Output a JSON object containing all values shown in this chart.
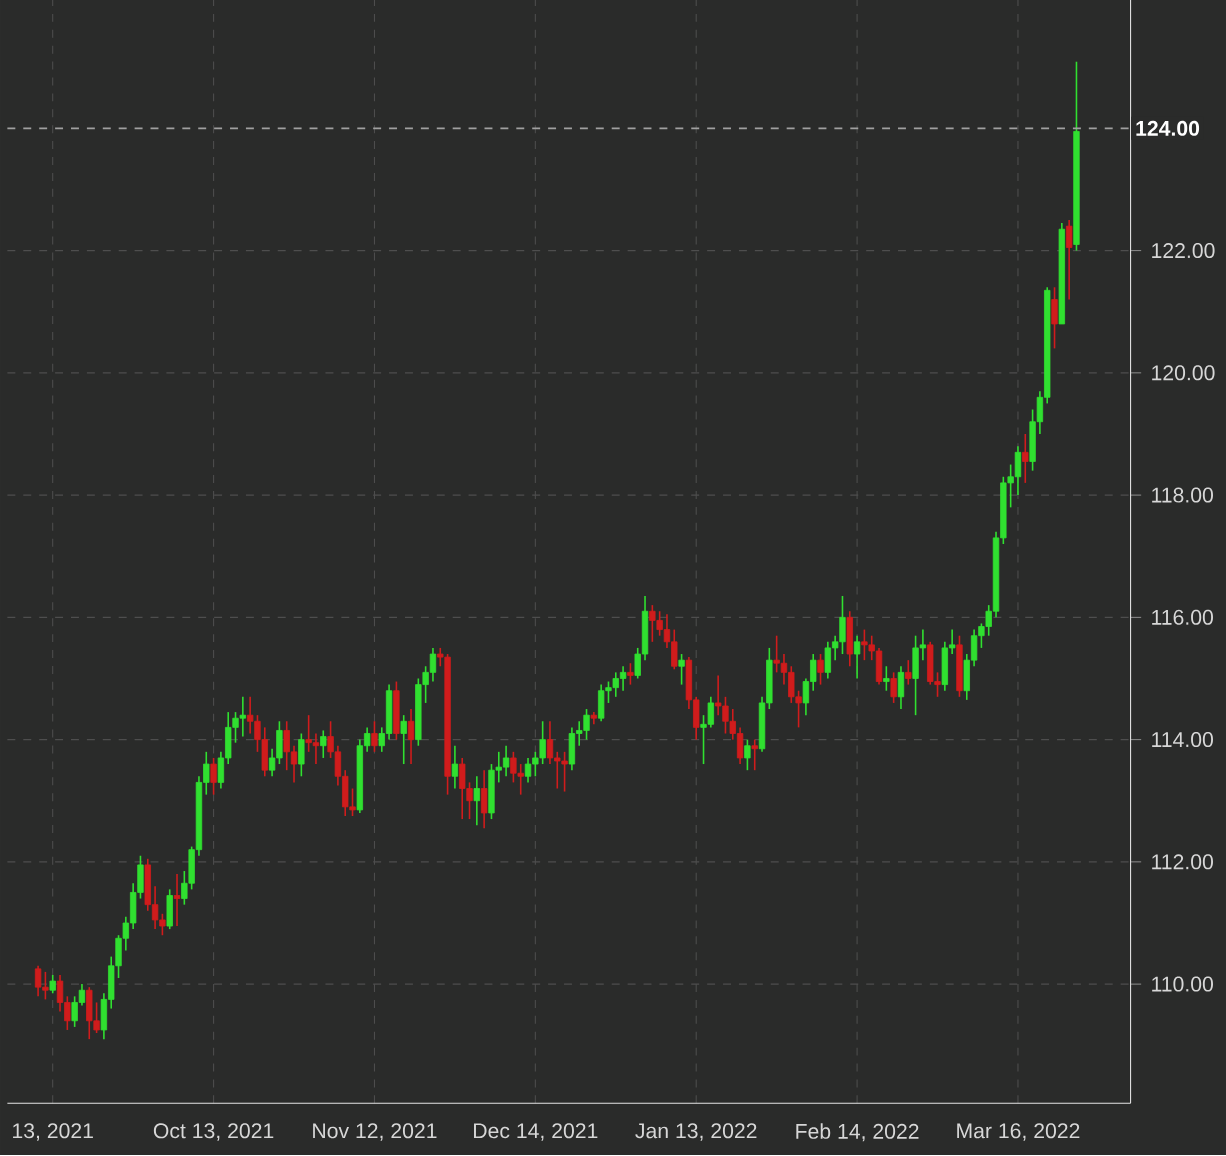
{
  "chart_data": {
    "type": "candlestick",
    "categories": [
      null,
      null,
      "13, 2021",
      null,
      null,
      null,
      null,
      null,
      null,
      null,
      null,
      null,
      null,
      null,
      null,
      null,
      null,
      null,
      null,
      null,
      null,
      null,
      null,
      null,
      "Oct 13, 2021",
      null,
      null,
      null,
      null,
      null,
      null,
      null,
      null,
      null,
      null,
      null,
      null,
      null,
      null,
      null,
      null,
      null,
      null,
      null,
      null,
      null,
      "Nov 12, 2021",
      null,
      null,
      null,
      null,
      null,
      null,
      null,
      null,
      null,
      null,
      null,
      null,
      null,
      null,
      null,
      null,
      null,
      null,
      null,
      null,
      null,
      "Dec 14, 2021",
      null,
      null,
      null,
      null,
      null,
      null,
      null,
      null,
      null,
      null,
      null,
      null,
      null,
      null,
      null,
      null,
      null,
      null,
      null,
      null,
      null,
      "Jan 13, 2022",
      null,
      null,
      null,
      null,
      null,
      null,
      null,
      null,
      null,
      null,
      null,
      null,
      null,
      null,
      null,
      null,
      null,
      null,
      null,
      null,
      null,
      "Feb 14, 2022",
      null,
      null,
      null,
      null,
      null,
      null,
      null,
      null,
      null,
      null,
      null,
      null,
      null,
      null,
      null,
      null,
      null,
      null,
      null,
      null,
      null,
      "Mar 16, 2022",
      null,
      null,
      null,
      null,
      null,
      null,
      null,
      null
    ],
    "ohlc": [
      [
        110.25,
        110.3,
        109.8,
        109.95
      ],
      [
        109.95,
        110.2,
        109.75,
        109.9
      ],
      [
        109.9,
        110.15,
        109.85,
        110.05
      ],
      [
        110.05,
        110.15,
        109.55,
        109.7
      ],
      [
        109.7,
        109.8,
        109.25,
        109.4
      ],
      [
        109.4,
        109.8,
        109.3,
        109.7
      ],
      [
        109.7,
        110.0,
        109.65,
        109.9
      ],
      [
        109.9,
        109.95,
        109.1,
        109.4
      ],
      [
        109.4,
        109.7,
        109.2,
        109.25
      ],
      [
        109.25,
        109.85,
        109.1,
        109.75
      ],
      [
        109.75,
        110.45,
        109.6,
        110.3
      ],
      [
        110.3,
        110.8,
        110.1,
        110.75
      ],
      [
        110.75,
        111.1,
        110.55,
        111.0
      ],
      [
        111.0,
        111.65,
        110.9,
        111.5
      ],
      [
        111.5,
        112.1,
        111.4,
        111.95
      ],
      [
        111.95,
        112.05,
        111.2,
        111.3
      ],
      [
        111.3,
        111.6,
        110.9,
        111.05
      ],
      [
        111.05,
        111.15,
        110.8,
        110.95
      ],
      [
        110.95,
        111.55,
        110.9,
        111.45
      ],
      [
        111.45,
        111.8,
        110.95,
        111.4
      ],
      [
        111.4,
        111.85,
        111.3,
        111.65
      ],
      [
        111.65,
        112.25,
        111.55,
        112.2
      ],
      [
        112.2,
        113.4,
        112.1,
        113.3
      ],
      [
        113.3,
        113.8,
        113.1,
        113.6
      ],
      [
        113.6,
        113.7,
        113.1,
        113.3
      ],
      [
        113.3,
        113.8,
        113.2,
        113.7
      ],
      [
        113.7,
        114.45,
        113.6,
        114.2
      ],
      [
        114.2,
        114.45,
        113.95,
        114.35
      ],
      [
        114.35,
        114.7,
        114.05,
        114.4
      ],
      [
        114.4,
        114.7,
        114.1,
        114.3
      ],
      [
        114.3,
        114.4,
        113.8,
        114.0
      ],
      [
        114.0,
        114.2,
        113.4,
        113.5
      ],
      [
        113.5,
        113.85,
        113.4,
        113.7
      ],
      [
        113.7,
        114.3,
        113.6,
        114.15
      ],
      [
        114.15,
        114.3,
        113.5,
        113.8
      ],
      [
        113.8,
        113.9,
        113.3,
        113.6
      ],
      [
        113.6,
        114.1,
        113.4,
        114.0
      ],
      [
        114.0,
        114.4,
        113.8,
        113.95
      ],
      [
        113.95,
        114.1,
        113.6,
        113.9
      ],
      [
        113.9,
        114.15,
        113.7,
        114.05
      ],
      [
        114.05,
        114.3,
        113.7,
        113.8
      ],
      [
        113.8,
        113.9,
        113.25,
        113.4
      ],
      [
        113.4,
        113.5,
        112.75,
        112.9
      ],
      [
        112.9,
        113.2,
        112.75,
        112.85
      ],
      [
        112.85,
        114.0,
        112.8,
        113.9
      ],
      [
        113.9,
        114.2,
        113.8,
        114.1
      ],
      [
        114.1,
        114.3,
        113.8,
        113.9
      ],
      [
        113.9,
        114.2,
        113.8,
        114.1
      ],
      [
        114.1,
        114.9,
        114.0,
        114.8
      ],
      [
        114.8,
        114.95,
        114.0,
        114.1
      ],
      [
        114.1,
        114.4,
        113.6,
        114.3
      ],
      [
        114.3,
        114.5,
        113.6,
        114.0
      ],
      [
        114.0,
        115.0,
        113.9,
        114.9
      ],
      [
        114.9,
        115.2,
        114.6,
        115.1
      ],
      [
        115.1,
        115.5,
        114.95,
        115.4
      ],
      [
        115.4,
        115.5,
        115.2,
        115.35
      ],
      [
        115.35,
        115.4,
        113.1,
        113.4
      ],
      [
        113.4,
        113.9,
        113.2,
        113.6
      ],
      [
        113.6,
        113.7,
        112.7,
        113.2
      ],
      [
        113.2,
        113.3,
        112.7,
        113.0
      ],
      [
        113.0,
        113.4,
        112.6,
        113.2
      ],
      [
        113.2,
        113.5,
        112.55,
        112.8
      ],
      [
        112.8,
        113.6,
        112.7,
        113.5
      ],
      [
        113.5,
        113.8,
        113.3,
        113.55
      ],
      [
        113.55,
        113.9,
        113.4,
        113.7
      ],
      [
        113.7,
        113.8,
        113.3,
        113.45
      ],
      [
        113.45,
        113.6,
        113.1,
        113.4
      ],
      [
        113.4,
        113.7,
        113.3,
        113.6
      ],
      [
        113.6,
        113.8,
        113.4,
        113.7
      ],
      [
        113.7,
        114.3,
        113.6,
        114.0
      ],
      [
        114.0,
        114.3,
        113.6,
        113.7
      ],
      [
        113.7,
        113.8,
        113.2,
        113.65
      ],
      [
        113.65,
        113.8,
        113.15,
        113.6
      ],
      [
        113.6,
        114.2,
        113.5,
        114.1
      ],
      [
        114.1,
        114.3,
        113.9,
        114.15
      ],
      [
        114.15,
        114.5,
        114.0,
        114.4
      ],
      [
        114.4,
        114.45,
        114.25,
        114.35
      ],
      [
        114.35,
        114.9,
        114.3,
        114.8
      ],
      [
        114.8,
        114.95,
        114.6,
        114.85
      ],
      [
        114.85,
        115.1,
        114.7,
        115.0
      ],
      [
        115.0,
        115.2,
        114.8,
        115.1
      ],
      [
        115.1,
        115.25,
        114.9,
        115.05
      ],
      [
        115.05,
        115.5,
        115.0,
        115.4
      ],
      [
        115.4,
        116.35,
        115.3,
        116.1
      ],
      [
        116.1,
        116.2,
        115.6,
        115.95
      ],
      [
        115.95,
        116.1,
        115.7,
        115.8
      ],
      [
        115.8,
        116.05,
        115.5,
        115.6
      ],
      [
        115.6,
        115.8,
        115.15,
        115.2
      ],
      [
        115.2,
        115.4,
        114.9,
        115.3
      ],
      [
        115.3,
        115.35,
        114.5,
        114.65
      ],
      [
        114.65,
        114.7,
        114.0,
        114.2
      ],
      [
        114.2,
        114.4,
        113.6,
        114.25
      ],
      [
        114.25,
        114.7,
        114.2,
        114.6
      ],
      [
        114.6,
        115.05,
        114.4,
        114.55
      ],
      [
        114.55,
        114.7,
        114.1,
        114.3
      ],
      [
        114.3,
        114.5,
        114.0,
        114.1
      ],
      [
        114.1,
        114.2,
        113.6,
        113.7
      ],
      [
        113.7,
        114.0,
        113.5,
        113.9
      ],
      [
        113.9,
        114.0,
        113.5,
        113.85
      ],
      [
        113.85,
        114.7,
        113.8,
        114.6
      ],
      [
        114.6,
        115.5,
        114.5,
        115.3
      ],
      [
        115.3,
        115.7,
        115.1,
        115.25
      ],
      [
        115.25,
        115.4,
        114.9,
        115.1
      ],
      [
        115.1,
        115.2,
        114.6,
        114.7
      ],
      [
        114.7,
        114.8,
        114.2,
        114.6
      ],
      [
        114.6,
        115.0,
        114.4,
        114.95
      ],
      [
        114.95,
        115.4,
        114.8,
        115.3
      ],
      [
        115.3,
        115.4,
        114.9,
        115.1
      ],
      [
        115.1,
        115.6,
        115.0,
        115.5
      ],
      [
        115.5,
        115.7,
        115.3,
        115.6
      ],
      [
        115.6,
        116.35,
        115.4,
        116.0
      ],
      [
        116.0,
        116.1,
        115.2,
        115.4
      ],
      [
        115.4,
        115.7,
        115.0,
        115.6
      ],
      [
        115.6,
        115.8,
        115.3,
        115.55
      ],
      [
        115.55,
        115.7,
        115.3,
        115.45
      ],
      [
        115.45,
        115.5,
        114.9,
        114.95
      ],
      [
        114.95,
        115.2,
        114.8,
        115.0
      ],
      [
        115.0,
        115.1,
        114.6,
        114.7
      ],
      [
        114.7,
        115.2,
        114.5,
        115.1
      ],
      [
        115.1,
        115.3,
        114.9,
        115.0
      ],
      [
        115.0,
        115.7,
        114.4,
        115.5
      ],
      [
        115.5,
        115.8,
        115.3,
        115.55
      ],
      [
        115.55,
        115.6,
        114.9,
        114.95
      ],
      [
        114.95,
        115.1,
        114.7,
        114.9
      ],
      [
        114.9,
        115.6,
        114.8,
        115.5
      ],
      [
        115.5,
        115.8,
        115.4,
        115.55
      ],
      [
        115.55,
        115.7,
        114.7,
        114.8
      ],
      [
        114.8,
        115.4,
        114.65,
        115.3
      ],
      [
        115.3,
        115.8,
        115.2,
        115.7
      ],
      [
        115.7,
        115.9,
        115.5,
        115.85
      ],
      [
        115.85,
        116.2,
        115.7,
        116.1
      ],
      [
        116.1,
        117.4,
        116.0,
        117.3
      ],
      [
        117.3,
        118.3,
        117.2,
        118.2
      ],
      [
        118.2,
        118.5,
        117.8,
        118.3
      ],
      [
        118.3,
        118.8,
        118.0,
        118.7
      ],
      [
        118.7,
        119.0,
        118.2,
        118.55
      ],
      [
        118.55,
        119.4,
        118.4,
        119.2
      ],
      [
        119.2,
        119.7,
        119.0,
        119.6
      ],
      [
        119.6,
        121.4,
        119.5,
        121.35
      ],
      [
        121.2,
        121.4,
        120.4,
        120.8
      ],
      [
        120.8,
        122.45,
        120.8,
        122.35
      ],
      [
        122.4,
        122.5,
        121.2,
        122.05
      ],
      [
        122.1,
        125.09,
        122.0,
        123.95
      ]
    ],
    "colors": [
      "#d01c1c",
      "#d01c1c",
      "#30e030",
      "#d01c1c",
      "#d01c1c",
      "#30e030",
      "#30e030",
      "#d01c1c",
      "#d01c1c",
      "#30e030",
      "#30e030",
      "#30e030",
      "#30e030",
      "#30e030",
      "#30e030",
      "#d01c1c",
      "#d01c1c",
      "#d01c1c",
      "#30e030",
      "#d01c1c",
      "#30e030",
      "#30e030",
      "#30e030",
      "#30e030",
      "#d01c1c",
      "#30e030",
      "#30e030",
      "#30e030",
      "#30e030",
      "#d01c1c",
      "#d01c1c",
      "#d01c1c",
      "#30e030",
      "#30e030",
      "#d01c1c",
      "#d01c1c",
      "#30e030",
      "#d01c1c",
      "#d01c1c",
      "#30e030",
      "#d01c1c",
      "#d01c1c",
      "#d01c1c",
      "#d01c1c",
      "#30e030",
      "#30e030",
      "#d01c1c",
      "#30e030",
      "#30e030",
      "#d01c1c",
      "#30e030",
      "#d01c1c",
      "#30e030",
      "#30e030",
      "#30e030",
      "#d01c1c",
      "#d01c1c",
      "#30e030",
      "#d01c1c",
      "#d01c1c",
      "#30e030",
      "#d01c1c",
      "#30e030",
      "#30e030",
      "#30e030",
      "#d01c1c",
      "#d01c1c",
      "#30e030",
      "#30e030",
      "#30e030",
      "#d01c1c",
      "#d01c1c",
      "#d01c1c",
      "#30e030",
      "#30e030",
      "#30e030",
      "#d01c1c",
      "#30e030",
      "#30e030",
      "#30e030",
      "#30e030",
      "#d01c1c",
      "#30e030",
      "#30e030",
      "#d01c1c",
      "#d01c1c",
      "#d01c1c",
      "#d01c1c",
      "#30e030",
      "#d01c1c",
      "#d01c1c",
      "#30e030",
      "#30e030",
      "#d01c1c",
      "#d01c1c",
      "#d01c1c",
      "#d01c1c",
      "#30e030",
      "#d01c1c",
      "#30e030",
      "#30e030",
      "#d01c1c",
      "#d01c1c",
      "#d01c1c",
      "#d01c1c",
      "#30e030",
      "#30e030",
      "#d01c1c",
      "#30e030",
      "#30e030",
      "#30e030",
      "#d01c1c",
      "#30e030",
      "#d01c1c",
      "#d01c1c",
      "#d01c1c",
      "#30e030",
      "#d01c1c",
      "#30e030",
      "#d01c1c",
      "#30e030",
      "#30e030",
      "#d01c1c",
      "#d01c1c",
      "#30e030",
      "#30e030",
      "#d01c1c",
      "#30e030",
      "#30e030",
      "#30e030",
      "#30e030",
      "#30e030",
      "#30e030",
      "#30e030",
      "#30e030",
      "#d01c1c",
      "#30e030",
      "#30e030",
      "#30e030",
      "#d01c1c",
      "#30e030",
      "#d01c1c",
      "#30e030"
    ],
    "ylim": [
      108.05,
      126.1
    ],
    "yticks": [
      {
        "value": 110,
        "label": "110.00"
      },
      {
        "value": 112,
        "label": "112.00"
      },
      {
        "value": 114,
        "label": "114.00"
      },
      {
        "value": 116,
        "label": "116.00"
      },
      {
        "value": 118,
        "label": "118.00"
      },
      {
        "value": 120,
        "label": "120.00"
      },
      {
        "value": 122,
        "label": "122.00"
      }
    ],
    "grid": true,
    "ref_lines": [
      {
        "axis": "y",
        "value": 124,
        "label": "124.00",
        "color": "#a0a0a0",
        "line_style": "dashed"
      }
    ]
  }
}
